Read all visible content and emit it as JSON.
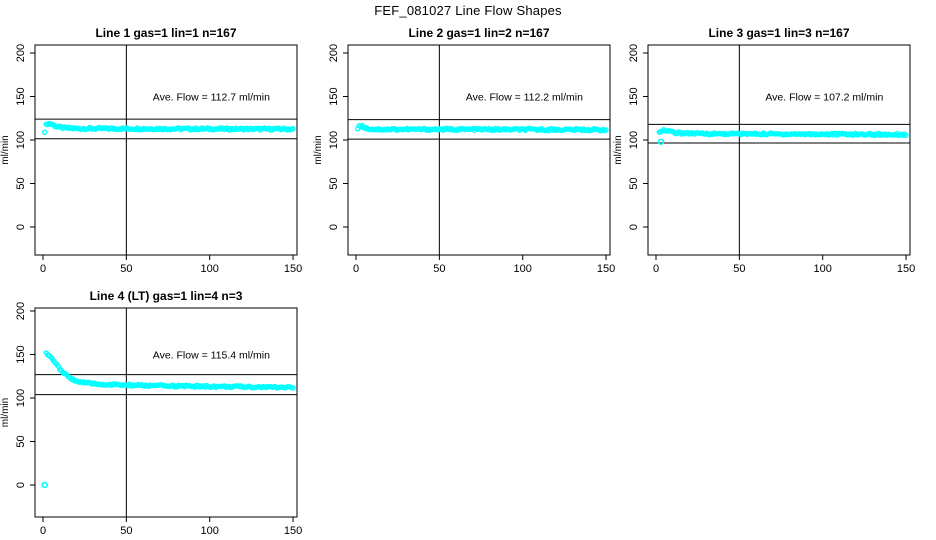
{
  "page": {
    "title": "FEF_081027  Line Flow Shapes"
  },
  "colors": {
    "points": "#00FFFF",
    "axis": "#000000",
    "background": "#FFFFFF"
  },
  "chart_data": [
    {
      "type": "scatter",
      "title": "Line 1 gas=1 lin=1 n=167",
      "annotation": "Ave. Flow =  112.7  ml/min",
      "ave_flow_ml_min": 112.7,
      "n": 167,
      "ylabel": "ml/min",
      "xticks": [
        0,
        50,
        100,
        150
      ],
      "yticks": [
        0,
        50,
        100,
        150,
        200
      ],
      "xlim": [
        -5,
        152
      ],
      "ylim": [
        -33,
        209
      ],
      "vline_x": 50,
      "hlines": [
        124.0,
        101.4
      ],
      "series_profile": [
        [
          1,
          110
        ],
        [
          2,
          118
        ],
        [
          3,
          119
        ],
        [
          5,
          118.5
        ],
        [
          8,
          115.5
        ],
        [
          12,
          114
        ],
        [
          20,
          113.2
        ],
        [
          60,
          113
        ],
        [
          150,
          112.5
        ]
      ],
      "outliers": [],
      "x_start": 1,
      "x_end": 150,
      "n_points": 167,
      "noise": 1.2
    },
    {
      "type": "scatter",
      "title": "Line 2 gas=1 lin=2 n=167",
      "annotation": "Ave. Flow =  112.2  ml/min",
      "ave_flow_ml_min": 112.2,
      "n": 167,
      "ylabel": "ml/min",
      "xticks": [
        0,
        50,
        100,
        150
      ],
      "yticks": [
        0,
        50,
        100,
        150,
        200
      ],
      "xlim": [
        -5,
        152
      ],
      "ylim": [
        -33,
        209
      ],
      "vline_x": 50,
      "hlines": [
        123.4,
        101.0
      ],
      "series_profile": [
        [
          1,
          113
        ],
        [
          2,
          117
        ],
        [
          4,
          115.5
        ],
        [
          7,
          113
        ],
        [
          12,
          112.3
        ],
        [
          60,
          112.2
        ],
        [
          150,
          111.8
        ]
      ],
      "outliers": [],
      "x_start": 1,
      "x_end": 150,
      "n_points": 167,
      "noise": 1.2
    },
    {
      "type": "scatter",
      "title": "Line 3 gas=1 lin=3 n=167",
      "annotation": "Ave. Flow =  107.2  ml/min",
      "ave_flow_ml_min": 107.2,
      "n": 167,
      "ylabel": "ml/min",
      "xticks": [
        0,
        50,
        100,
        150
      ],
      "yticks": [
        0,
        50,
        100,
        150,
        200
      ],
      "xlim": [
        -5,
        152
      ],
      "ylim": [
        -33,
        209
      ],
      "vline_x": 50,
      "hlines": [
        117.9,
        96.5
      ],
      "series_profile": [
        [
          2,
          110
        ],
        [
          4,
          111.5
        ],
        [
          7,
          110
        ],
        [
          12,
          108.3
        ],
        [
          25,
          107.3
        ],
        [
          60,
          107
        ],
        [
          150,
          106.3
        ]
      ],
      "outliers": [
        [
          3,
          98
        ]
      ],
      "x_start": 2,
      "x_end": 150,
      "n_points": 167,
      "noise": 1.2
    },
    {
      "type": "scatter",
      "title": "Line 4 (LT) gas=1 lin=4 n=3",
      "annotation": "Ave. Flow =  115.4  ml/min",
      "ave_flow_ml_min": 115.4,
      "n": 3,
      "ylabel": "ml/min",
      "xticks": [
        0,
        50,
        100,
        150
      ],
      "yticks": [
        0,
        50,
        100,
        150,
        200
      ],
      "xlim": [
        -5,
        152
      ],
      "ylim": [
        -33,
        209
      ],
      "vline_x": 50,
      "hlines": [
        126.9,
        103.9
      ],
      "series_profile": [
        [
          2,
          151
        ],
        [
          4,
          149.5
        ],
        [
          6,
          144
        ],
        [
          8,
          138.5
        ],
        [
          10,
          133.5
        ],
        [
          13,
          127.5
        ],
        [
          16,
          123.5
        ],
        [
          20,
          119.5
        ],
        [
          25,
          117.5
        ],
        [
          30,
          116.3
        ],
        [
          40,
          115.3
        ],
        [
          60,
          114.3
        ],
        [
          100,
          113.3
        ],
        [
          150,
          112.2
        ]
      ],
      "outliers": [
        [
          1,
          0
        ]
      ],
      "x_start": 2,
      "x_end": 150,
      "n_points": 167,
      "noise": 1.2
    }
  ]
}
